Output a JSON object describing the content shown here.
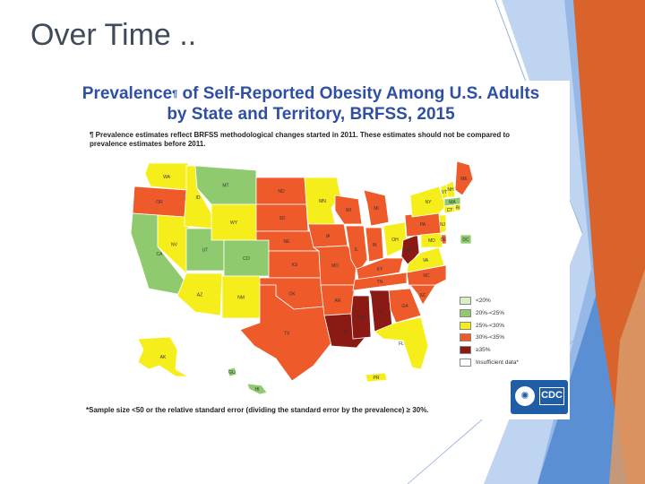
{
  "slide": {
    "title": "Over Time .."
  },
  "figure": {
    "title_prefix": "Prevalence",
    "title_mark": "¶",
    "title_line1_rest": " of Self-Reported Obesity Among U.S. Adults",
    "title_line2": "by State and Territory, BRFSS, 2015",
    "footnote": "¶ Prevalence estimates reflect BRFSS methodological changes started in 2011. These estimates should not be compared to prevalence estimates before 2011.",
    "sample_note": "*Sample size <50 or the relative standard error (dividing the standard error by the prevalence) ≥ 30%.",
    "logo_text": "CDC",
    "hhs_glyph": "✺",
    "legend": [
      {
        "label": "<20%",
        "color": "#d6f0c4"
      },
      {
        "label": "20%-<25%",
        "color": "#8fca6e"
      },
      {
        "label": "25%-<30%",
        "color": "#f5ee1a"
      },
      {
        "label": "30%-<35%",
        "color": "#ef5a2a"
      },
      {
        "label": "≥35%",
        "color": "#8b1a14"
      },
      {
        "label": "Insufficient data*",
        "color": "#ffffff"
      }
    ]
  },
  "colors": {
    "green": "#8fca6e",
    "yellow": "#f5ee1a",
    "orange": "#ef5a2a",
    "darkred": "#8b1a14",
    "lightgreen": "#d6f0c4",
    "title_blue": "#2e4fa3",
    "deco_orange": "#d9632a",
    "deco_blue": "#5b8fd4"
  },
  "states": [
    {
      "abbr": "WA",
      "color": "yellow"
    },
    {
      "abbr": "OR",
      "color": "orange"
    },
    {
      "abbr": "CA",
      "color": "green"
    },
    {
      "abbr": "NV",
      "color": "yellow"
    },
    {
      "abbr": "ID",
      "color": "yellow"
    },
    {
      "abbr": "MT",
      "color": "green"
    },
    {
      "abbr": "WY",
      "color": "yellow"
    },
    {
      "abbr": "UT",
      "color": "green"
    },
    {
      "abbr": "CO",
      "color": "green"
    },
    {
      "abbr": "AZ",
      "color": "yellow"
    },
    {
      "abbr": "NM",
      "color": "yellow"
    },
    {
      "abbr": "ND",
      "color": "orange"
    },
    {
      "abbr": "SD",
      "color": "orange"
    },
    {
      "abbr": "NE",
      "color": "orange"
    },
    {
      "abbr": "KS",
      "color": "orange"
    },
    {
      "abbr": "OK",
      "color": "orange"
    },
    {
      "abbr": "TX",
      "color": "orange"
    },
    {
      "abbr": "MN",
      "color": "yellow"
    },
    {
      "abbr": "IA",
      "color": "orange"
    },
    {
      "abbr": "MO",
      "color": "orange"
    },
    {
      "abbr": "AR",
      "color": "orange"
    },
    {
      "abbr": "LA",
      "color": "darkred"
    },
    {
      "abbr": "WI",
      "color": "orange"
    },
    {
      "abbr": "IL",
      "color": "orange"
    },
    {
      "abbr": "MS",
      "color": "darkred"
    },
    {
      "abbr": "MI",
      "color": "orange"
    },
    {
      "abbr": "IN",
      "color": "orange"
    },
    {
      "abbr": "KY",
      "color": "orange"
    },
    {
      "abbr": "TN",
      "color": "orange"
    },
    {
      "abbr": "AL",
      "color": "darkred"
    },
    {
      "abbr": "OH",
      "color": "yellow"
    },
    {
      "abbr": "WV",
      "color": "darkred"
    },
    {
      "abbr": "GA",
      "color": "orange"
    },
    {
      "abbr": "FL",
      "color": "yellow"
    },
    {
      "abbr": "SC",
      "color": "orange"
    },
    {
      "abbr": "NC",
      "color": "orange"
    },
    {
      "abbr": "VA",
      "color": "yellow"
    },
    {
      "abbr": "PA",
      "color": "orange"
    },
    {
      "abbr": "NY",
      "color": "yellow"
    },
    {
      "abbr": "ME",
      "color": "orange"
    },
    {
      "abbr": "VT",
      "color": "yellow"
    },
    {
      "abbr": "NH",
      "color": "yellow"
    },
    {
      "abbr": "MA",
      "color": "green"
    },
    {
      "abbr": "CT",
      "color": "yellow"
    },
    {
      "abbr": "RI",
      "color": "yellow"
    },
    {
      "abbr": "NJ",
      "color": "yellow"
    },
    {
      "abbr": "DE",
      "color": "orange"
    },
    {
      "abbr": "MD",
      "color": "yellow"
    },
    {
      "abbr": "DC",
      "color": "green"
    },
    {
      "abbr": "AK",
      "color": "yellow"
    },
    {
      "abbr": "HI",
      "color": "green"
    },
    {
      "abbr": "GU",
      "color": "green"
    },
    {
      "abbr": "PR",
      "color": "yellow"
    }
  ]
}
